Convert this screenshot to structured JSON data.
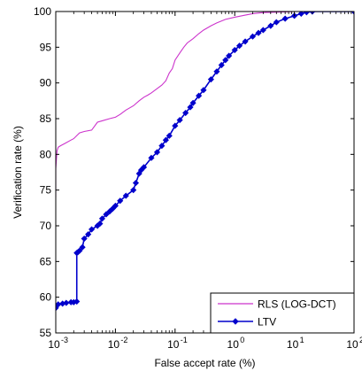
{
  "chart_data": {
    "type": "line",
    "title": "",
    "xlabel": "False accept rate (%)",
    "ylabel": "Verification rate (%)",
    "xscale": "log",
    "xlim": [
      0.001,
      100
    ],
    "ylim": [
      55,
      100
    ],
    "x_ticks": [
      {
        "value": 0.001,
        "base": "10",
        "exp": "-3"
      },
      {
        "value": 0.01,
        "base": "10",
        "exp": "-2"
      },
      {
        "value": 0.1,
        "base": "10",
        "exp": "-1"
      },
      {
        "value": 1,
        "base": "10",
        "exp": "0"
      },
      {
        "value": 10,
        "base": "10",
        "exp": "1"
      },
      {
        "value": 100,
        "base": "10",
        "exp": "2"
      }
    ],
    "y_ticks": [
      "55",
      "60",
      "65",
      "70",
      "75",
      "80",
      "85",
      "90",
      "95",
      "100"
    ],
    "grid": false,
    "legend_position": "bottom-right",
    "series": [
      {
        "name": "RLS (LOG-DCT)",
        "color": "#cc33cc",
        "marker": "none",
        "x": [
          0.001,
          0.001,
          0.00105,
          0.0011,
          0.0012,
          0.0014,
          0.0018,
          0.002,
          0.0025,
          0.003,
          0.004,
          0.005,
          0.006,
          0.008,
          0.01,
          0.012,
          0.015,
          0.02,
          0.025,
          0.03,
          0.035,
          0.04,
          0.05,
          0.06,
          0.07,
          0.08,
          0.09,
          0.1,
          0.12,
          0.14,
          0.16,
          0.2,
          0.25,
          0.3,
          0.4,
          0.5,
          0.7,
          1,
          1.5,
          2,
          3,
          5,
          8,
          10,
          15,
          20,
          100
        ],
        "y": [
          74,
          78,
          80.5,
          81,
          81.2,
          81.5,
          82,
          82.2,
          83,
          83.2,
          83.4,
          84.5,
          84.7,
          85,
          85.2,
          85.6,
          86.2,
          86.8,
          87.5,
          88,
          88.3,
          88.6,
          89.2,
          89.7,
          90.3,
          91.4,
          92,
          93.2,
          94.2,
          95,
          95.6,
          96.2,
          96.9,
          97.4,
          98,
          98.4,
          98.9,
          99.2,
          99.5,
          99.7,
          99.85,
          99.92,
          99.96,
          100,
          100,
          100,
          100
        ]
      },
      {
        "name": "LTV",
        "color": "#0000cc",
        "marker": "diamond",
        "x": [
          0.001,
          0.0011,
          0.0013,
          0.0015,
          0.0018,
          0.002,
          0.00225,
          0.00225,
          0.00235,
          0.0025,
          0.0028,
          0.003,
          0.0035,
          0.004,
          0.005,
          0.0055,
          0.006,
          0.007,
          0.008,
          0.009,
          0.01,
          0.012,
          0.015,
          0.02,
          0.022,
          0.025,
          0.027,
          0.03,
          0.04,
          0.05,
          0.06,
          0.07,
          0.08,
          0.1,
          0.12,
          0.15,
          0.18,
          0.2,
          0.25,
          0.3,
          0.4,
          0.5,
          0.6,
          0.7,
          0.8,
          1,
          1.2,
          1.5,
          2,
          2.5,
          3,
          4,
          5,
          7,
          10,
          13,
          16,
          20,
          100
        ],
        "y": [
          58.5,
          59,
          59.1,
          59.2,
          59.3,
          59.3,
          59.4,
          66.2,
          66.3,
          66.5,
          67,
          68.2,
          68.8,
          69.5,
          70,
          70.3,
          71,
          71.6,
          72,
          72.4,
          72.8,
          73.5,
          74.2,
          75,
          76,
          77.3,
          77.8,
          78.2,
          79.5,
          80.3,
          81.2,
          82,
          82.6,
          84,
          84.8,
          85.8,
          86.6,
          87.2,
          88.2,
          89,
          90.5,
          91.6,
          92.5,
          93.2,
          93.8,
          94.6,
          95.2,
          95.8,
          96.5,
          97,
          97.4,
          98,
          98.5,
          99,
          99.4,
          99.7,
          99.9,
          100,
          100
        ]
      }
    ]
  }
}
